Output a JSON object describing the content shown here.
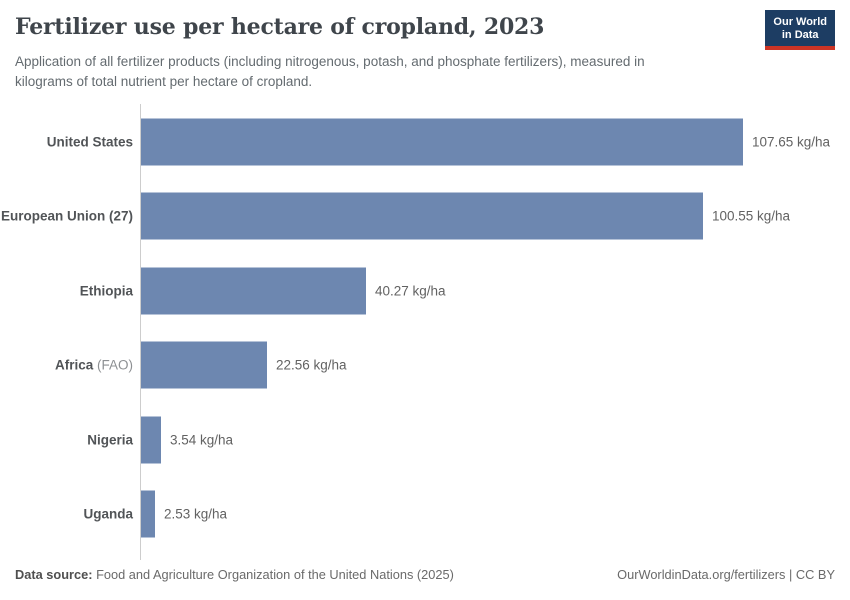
{
  "header": {
    "title": "Fertilizer use per hectare of cropland, 2023",
    "subtitle_lines": [
      "Application of all fertilizer products (including nitrogenous, potash, and phosphate fertilizers), measured in",
      "kilograms of total nutrient per hectare of cropland."
    ],
    "logo": {
      "line1": "Our World",
      "line2": "in Data"
    }
  },
  "chart_data": {
    "type": "bar",
    "orientation": "horizontal",
    "title": "Fertilizer use per hectare of cropland, 2023",
    "unit": "kg/ha",
    "xlim": [
      0,
      110
    ],
    "grid": false,
    "legend": "none",
    "categories": [
      {
        "name": "United States",
        "note": ""
      },
      {
        "name": "European Union (27)",
        "note": ""
      },
      {
        "name": "Ethiopia",
        "note": ""
      },
      {
        "name": "Africa",
        "note": "(FAO)"
      },
      {
        "name": "Nigeria",
        "note": ""
      },
      {
        "name": "Uganda",
        "note": ""
      }
    ],
    "values": [
      107.65,
      100.55,
      40.27,
      22.56,
      3.54,
      2.53
    ],
    "value_labels": [
      "107.65 kg/ha",
      "100.55 kg/ha",
      "40.27 kg/ha",
      "22.56 kg/ha",
      "3.54 kg/ha",
      "2.53 kg/ha"
    ]
  },
  "footer": {
    "source_label": "Data source:",
    "source_text": " Food and Agriculture Organization of the United Nations (2025)",
    "credit": "OurWorldinData.org/fertilizers | CC BY"
  },
  "colors": {
    "bar": "#6d87b0",
    "logo_bg": "#1d3d63",
    "logo_accent": "#cc3425",
    "axis_line": "#cdcdcd"
  }
}
